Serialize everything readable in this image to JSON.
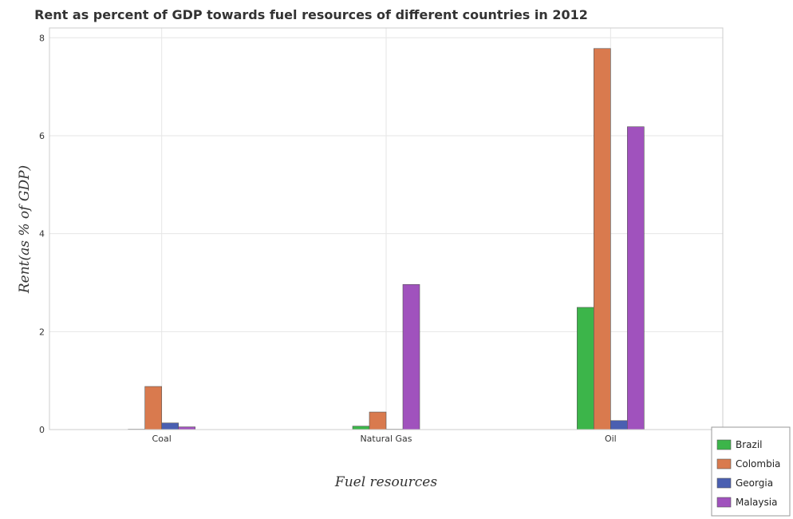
{
  "chart_data": {
    "type": "bar",
    "title": "Rent as percent of GDP towards fuel resources of different countries in 2012",
    "xlabel": "Fuel resources",
    "ylabel": "Rent(as % of GDP)",
    "categories": [
      "Coal",
      "Natural Gas",
      "Oil"
    ],
    "ylim": [
      0,
      8.2
    ],
    "yticks": [
      0,
      2,
      4,
      6,
      8
    ],
    "grid": true,
    "legend_position": "bottom-right",
    "series": [
      {
        "name": "Brazil",
        "color": "#3cb54a",
        "values": [
          0.003,
          0.07,
          2.495
        ]
      },
      {
        "name": "Colombia",
        "color": "#d97a4e",
        "values": [
          0.88,
          0.358,
          7.78
        ]
      },
      {
        "name": "Georgia",
        "color": "#4a5fb1",
        "values": [
          0.135,
          0.003,
          0.183
        ]
      },
      {
        "name": "Malaysia",
        "color": "#a052bd",
        "values": [
          0.055,
          2.963,
          6.183
        ]
      }
    ]
  }
}
